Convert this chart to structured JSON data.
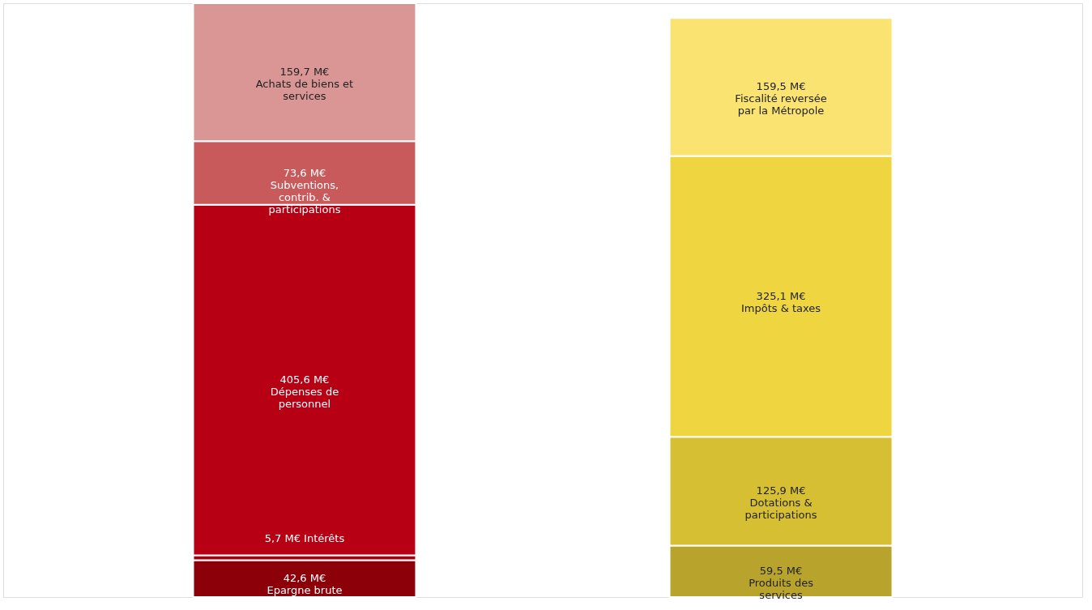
{
  "chart_data": {
    "type": "bar",
    "stacked": true,
    "categories": [
      null,
      null
    ],
    "series": [
      {
        "name": "Epargne brute",
        "color": "#8c0009",
        "values": [
          42.6,
          null
        ],
        "value_labels": [
          "42,6 M€",
          null
        ]
      },
      {
        "name": "Intérêts",
        "color": "#a3000f",
        "values": [
          5.7,
          null
        ],
        "value_labels": [
          "5,7 M€",
          null
        ]
      },
      {
        "name": "Dépenses de personnel",
        "color": "#b70013",
        "values": [
          405.6,
          null
        ],
        "value_labels": [
          "405,6 M€",
          null
        ]
      },
      {
        "name": "Subventions, contrib. & participations",
        "color": "#c95a5c",
        "values": [
          73.6,
          null
        ],
        "value_labels": [
          "73,6 M€",
          null
        ]
      },
      {
        "name": "Achats de biens et services",
        "color": "#d99695",
        "values": [
          159.7,
          null
        ],
        "value_labels": [
          "159,7 M€",
          null
        ]
      },
      {
        "name": "Produits des services",
        "color": "#b8a42c",
        "values": [
          null,
          59.5
        ],
        "value_labels": [
          null,
          "59,5 M€"
        ]
      },
      {
        "name": "Dotations & participations",
        "color": "#d6bf33",
        "values": [
          null,
          125.9
        ],
        "value_labels": [
          null,
          "125,9 M€"
        ]
      },
      {
        "name": "Impôts & taxes",
        "color": "#efd640",
        "values": [
          null,
          325.1
        ],
        "value_labels": [
          null,
          "325,1 M€"
        ]
      },
      {
        "name": "Fiscalité reversée par la Métropole",
        "color": "#fae370",
        "values": [
          null,
          159.5
        ],
        "value_labels": [
          null,
          "159,5 M€"
        ]
      }
    ]
  }
}
